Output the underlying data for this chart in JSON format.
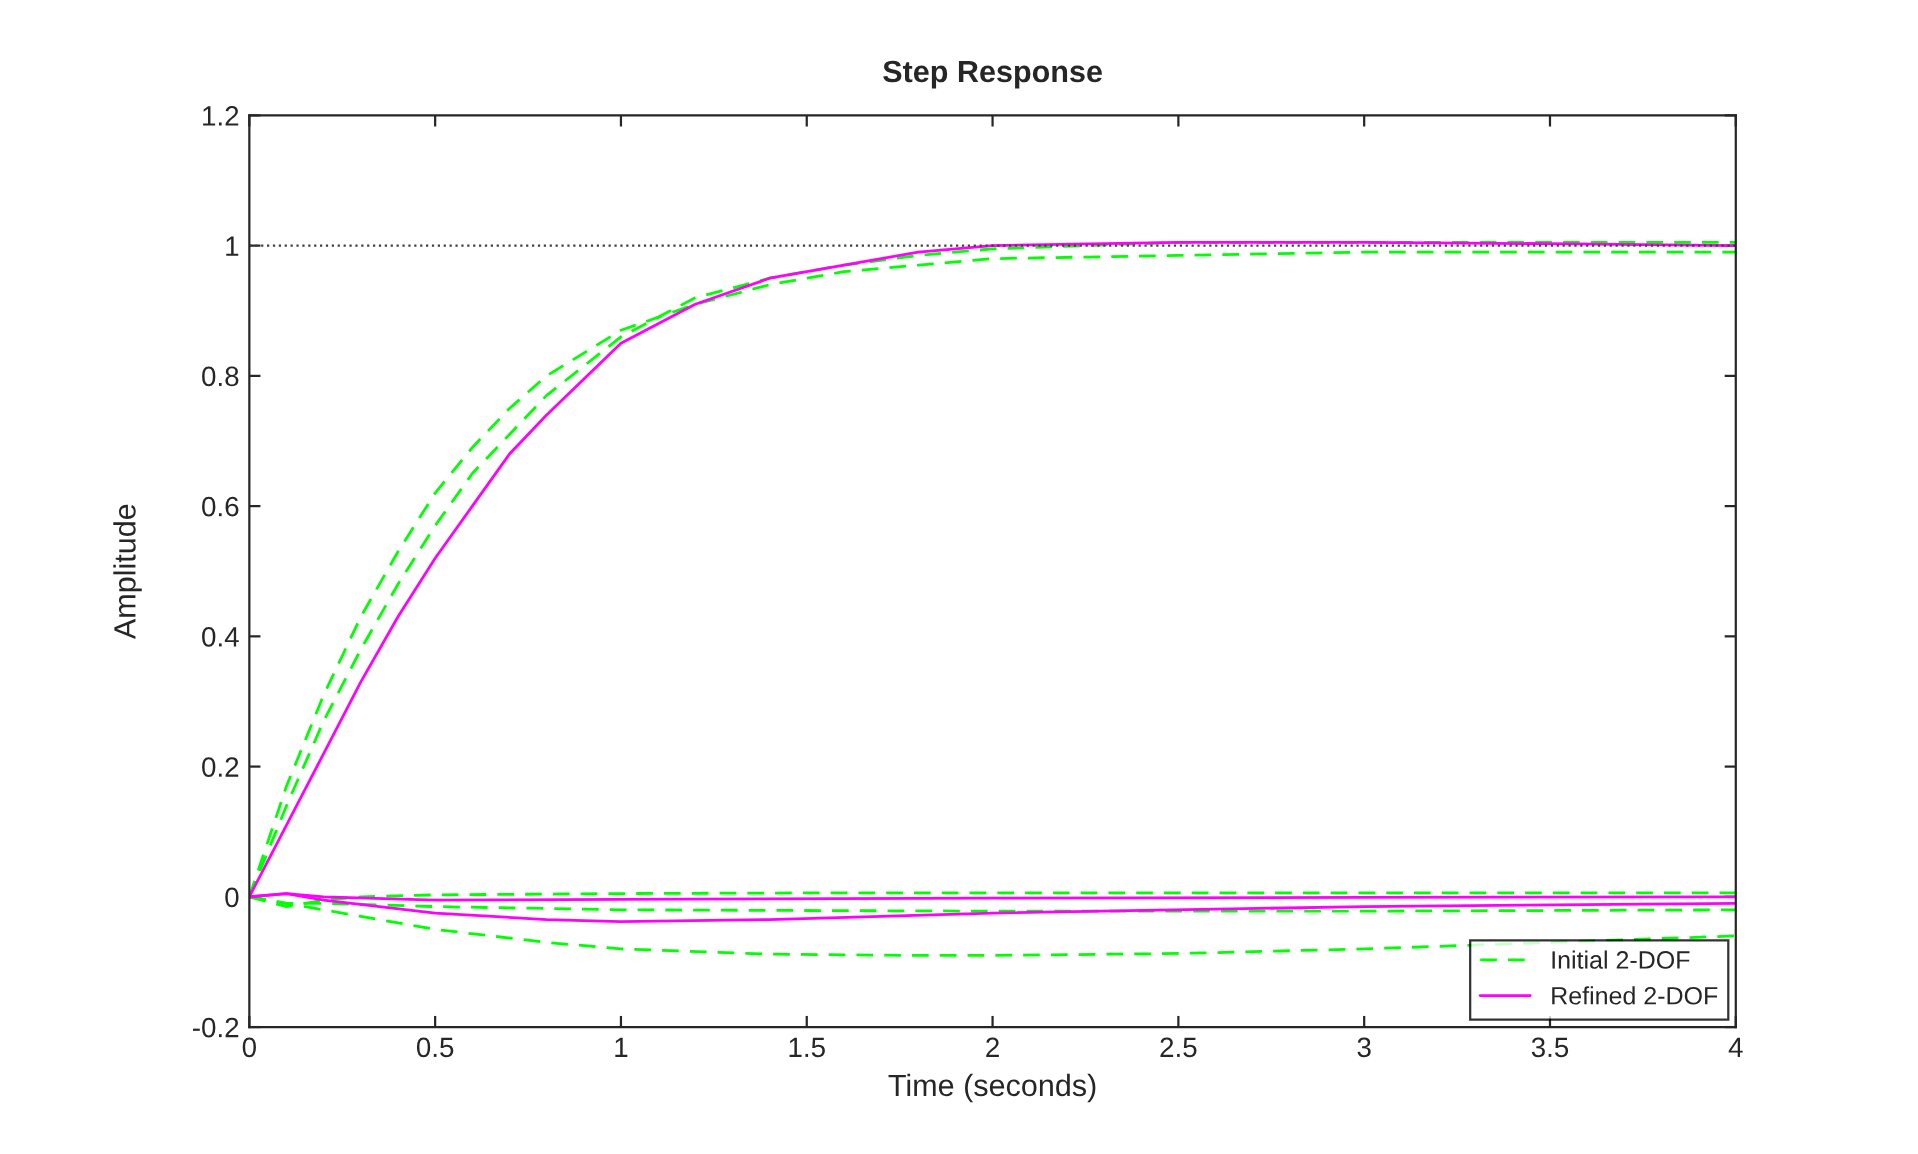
{
  "chart_data": {
    "type": "line",
    "title": "Step Response",
    "xlabel": "Time (seconds)",
    "ylabel": "Amplitude",
    "xlim": [
      0,
      4
    ],
    "xticks": [
      0,
      0.5,
      1,
      1.5,
      2,
      2.5,
      3,
      3.5,
      4
    ],
    "ylim": [
      -0.2,
      1.2
    ],
    "yticks": [
      -0.2,
      0,
      0.2,
      0.4,
      0.6,
      0.8,
      1,
      1.2
    ],
    "grid": false,
    "legend": "bottom right",
    "marker": "none",
    "ref_lines": [
      {
        "axis": "y",
        "value": 1,
        "color": "#404040",
        "line_style": "dotted"
      }
    ],
    "series": [
      {
        "name": "Initial 2-DOF",
        "color": "#00ff00",
        "line_style": "dashed",
        "x": [
          0,
          0.1,
          0.2,
          0.3,
          0.4,
          0.5,
          0.6,
          0.7,
          0.8,
          1.0,
          1.2,
          1.4,
          1.6,
          1.8,
          2.0,
          2.5,
          3,
          3.5,
          4
        ],
        "values": [
          0,
          0.17,
          0.31,
          0.43,
          0.53,
          0.62,
          0.69,
          0.75,
          0.8,
          0.87,
          0.91,
          0.94,
          0.96,
          0.97,
          0.98,
          0.985,
          0.99,
          0.99,
          0.99
        ]
      },
      {
        "color": "#00ff00",
        "line_style": "dashed",
        "x": [
          0,
          0.1,
          0.2,
          0.3,
          0.4,
          0.5,
          0.6,
          0.7,
          0.8,
          1.0,
          1.2,
          1.4,
          1.6,
          1.8,
          2.0,
          2.5,
          3,
          3.5,
          4
        ],
        "values": [
          0,
          0.14,
          0.27,
          0.38,
          0.48,
          0.57,
          0.65,
          0.71,
          0.77,
          0.86,
          0.92,
          0.95,
          0.97,
          0.985,
          0.995,
          1.005,
          1.005,
          1.005,
          1.005
        ]
      },
      {
        "color": "#00ff00",
        "line_style": "dashed",
        "x": [
          0,
          0.1,
          0.2,
          0.3,
          0.5,
          0.8,
          1.0,
          1.4,
          1.8,
          2.0,
          2.5,
          3,
          3.5,
          4
        ],
        "values": [
          0,
          -0.01,
          -0.02,
          -0.03,
          -0.05,
          -0.07,
          -0.08,
          -0.088,
          -0.09,
          -0.09,
          -0.087,
          -0.08,
          -0.07,
          -0.06
        ]
      },
      {
        "color": "#00ff00",
        "line_style": "dashed",
        "x": [
          0,
          0.1,
          0.2,
          0.3,
          0.5,
          1,
          1.5,
          2,
          3,
          4
        ],
        "values": [
          0,
          -0.015,
          -0.005,
          0,
          0.003,
          0.005,
          0.006,
          0.006,
          0.006,
          0.006
        ]
      },
      {
        "color": "#00ff00",
        "line_style": "dashed",
        "x": [
          0,
          0.1,
          0.2,
          0.5,
          1,
          2,
          3,
          4
        ],
        "values": [
          0,
          -0.01,
          -0.01,
          -0.015,
          -0.02,
          -0.022,
          -0.022,
          -0.02
        ]
      },
      {
        "name": "Refined 2-DOF",
        "color": "#ff00ff",
        "line_style": "solid",
        "x": [
          0,
          0.1,
          0.2,
          0.3,
          0.4,
          0.5,
          0.6,
          0.7,
          0.8,
          1.0,
          1.2,
          1.4,
          1.6,
          1.8,
          2.0,
          2.5,
          3,
          3.5,
          4
        ],
        "values": [
          0,
          0.11,
          0.22,
          0.33,
          0.43,
          0.52,
          0.6,
          0.68,
          0.74,
          0.85,
          0.91,
          0.95,
          0.97,
          0.99,
          1.0,
          1.005,
          1.005,
          1.003,
          1.0
        ]
      },
      {
        "color": "#ff00ff",
        "line_style": "solid",
        "x": [
          0,
          0.1,
          0.2,
          0.5,
          0.8,
          1,
          1.4,
          2,
          3,
          4
        ],
        "values": [
          0,
          0.005,
          -0.005,
          -0.025,
          -0.035,
          -0.038,
          -0.035,
          -0.025,
          -0.015,
          -0.01
        ]
      },
      {
        "color": "#ff00ff",
        "line_style": "solid",
        "x": [
          0,
          0.1,
          0.2,
          0.5,
          1,
          2,
          3,
          4
        ],
        "values": [
          0,
          0.005,
          0,
          -0.005,
          -0.004,
          -0.002,
          -0.001,
          0
        ]
      }
    ]
  }
}
